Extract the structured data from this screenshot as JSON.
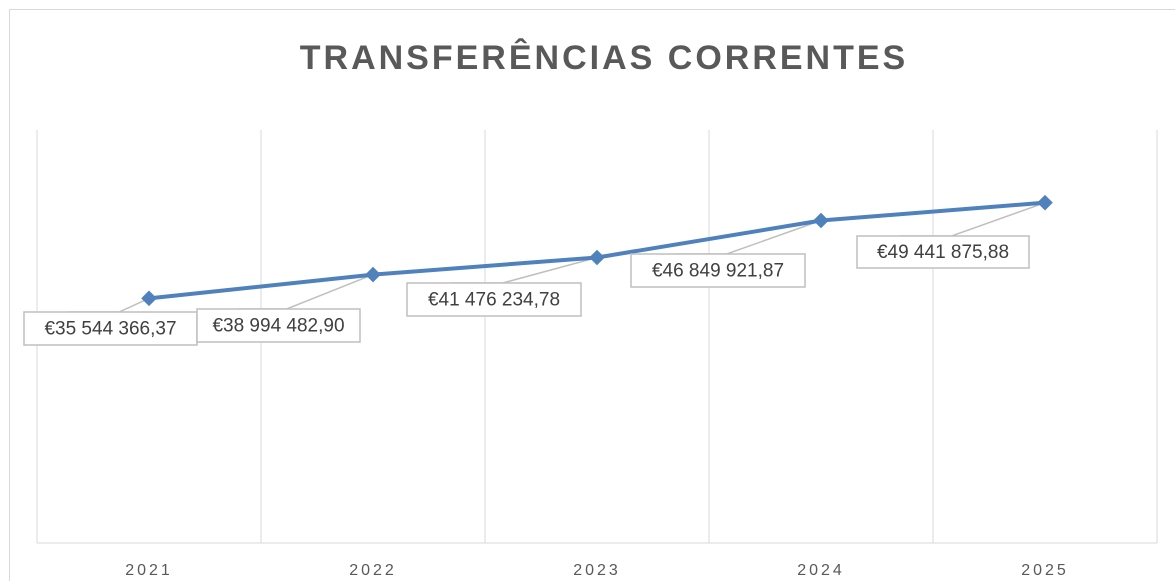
{
  "chart_data": {
    "type": "line",
    "title": "TRANSFERÊNCIAS CORRENTES",
    "categories": [
      "2021",
      "2022",
      "2023",
      "2024",
      "2025"
    ],
    "series": [
      {
        "name": "Transferências Correntes",
        "color": "#4f81bd",
        "values": [
          35544366.37,
          38994482.9,
          41476234.78,
          46849921.87,
          49441875.88
        ],
        "value_labels": [
          "€35 544 366,37",
          "€38 994 482,90",
          "€41 476 234,78",
          "€46 849 921,87",
          "€49 441 875,88"
        ]
      }
    ],
    "ylim": [
      0,
      60000000
    ],
    "grid": true
  }
}
